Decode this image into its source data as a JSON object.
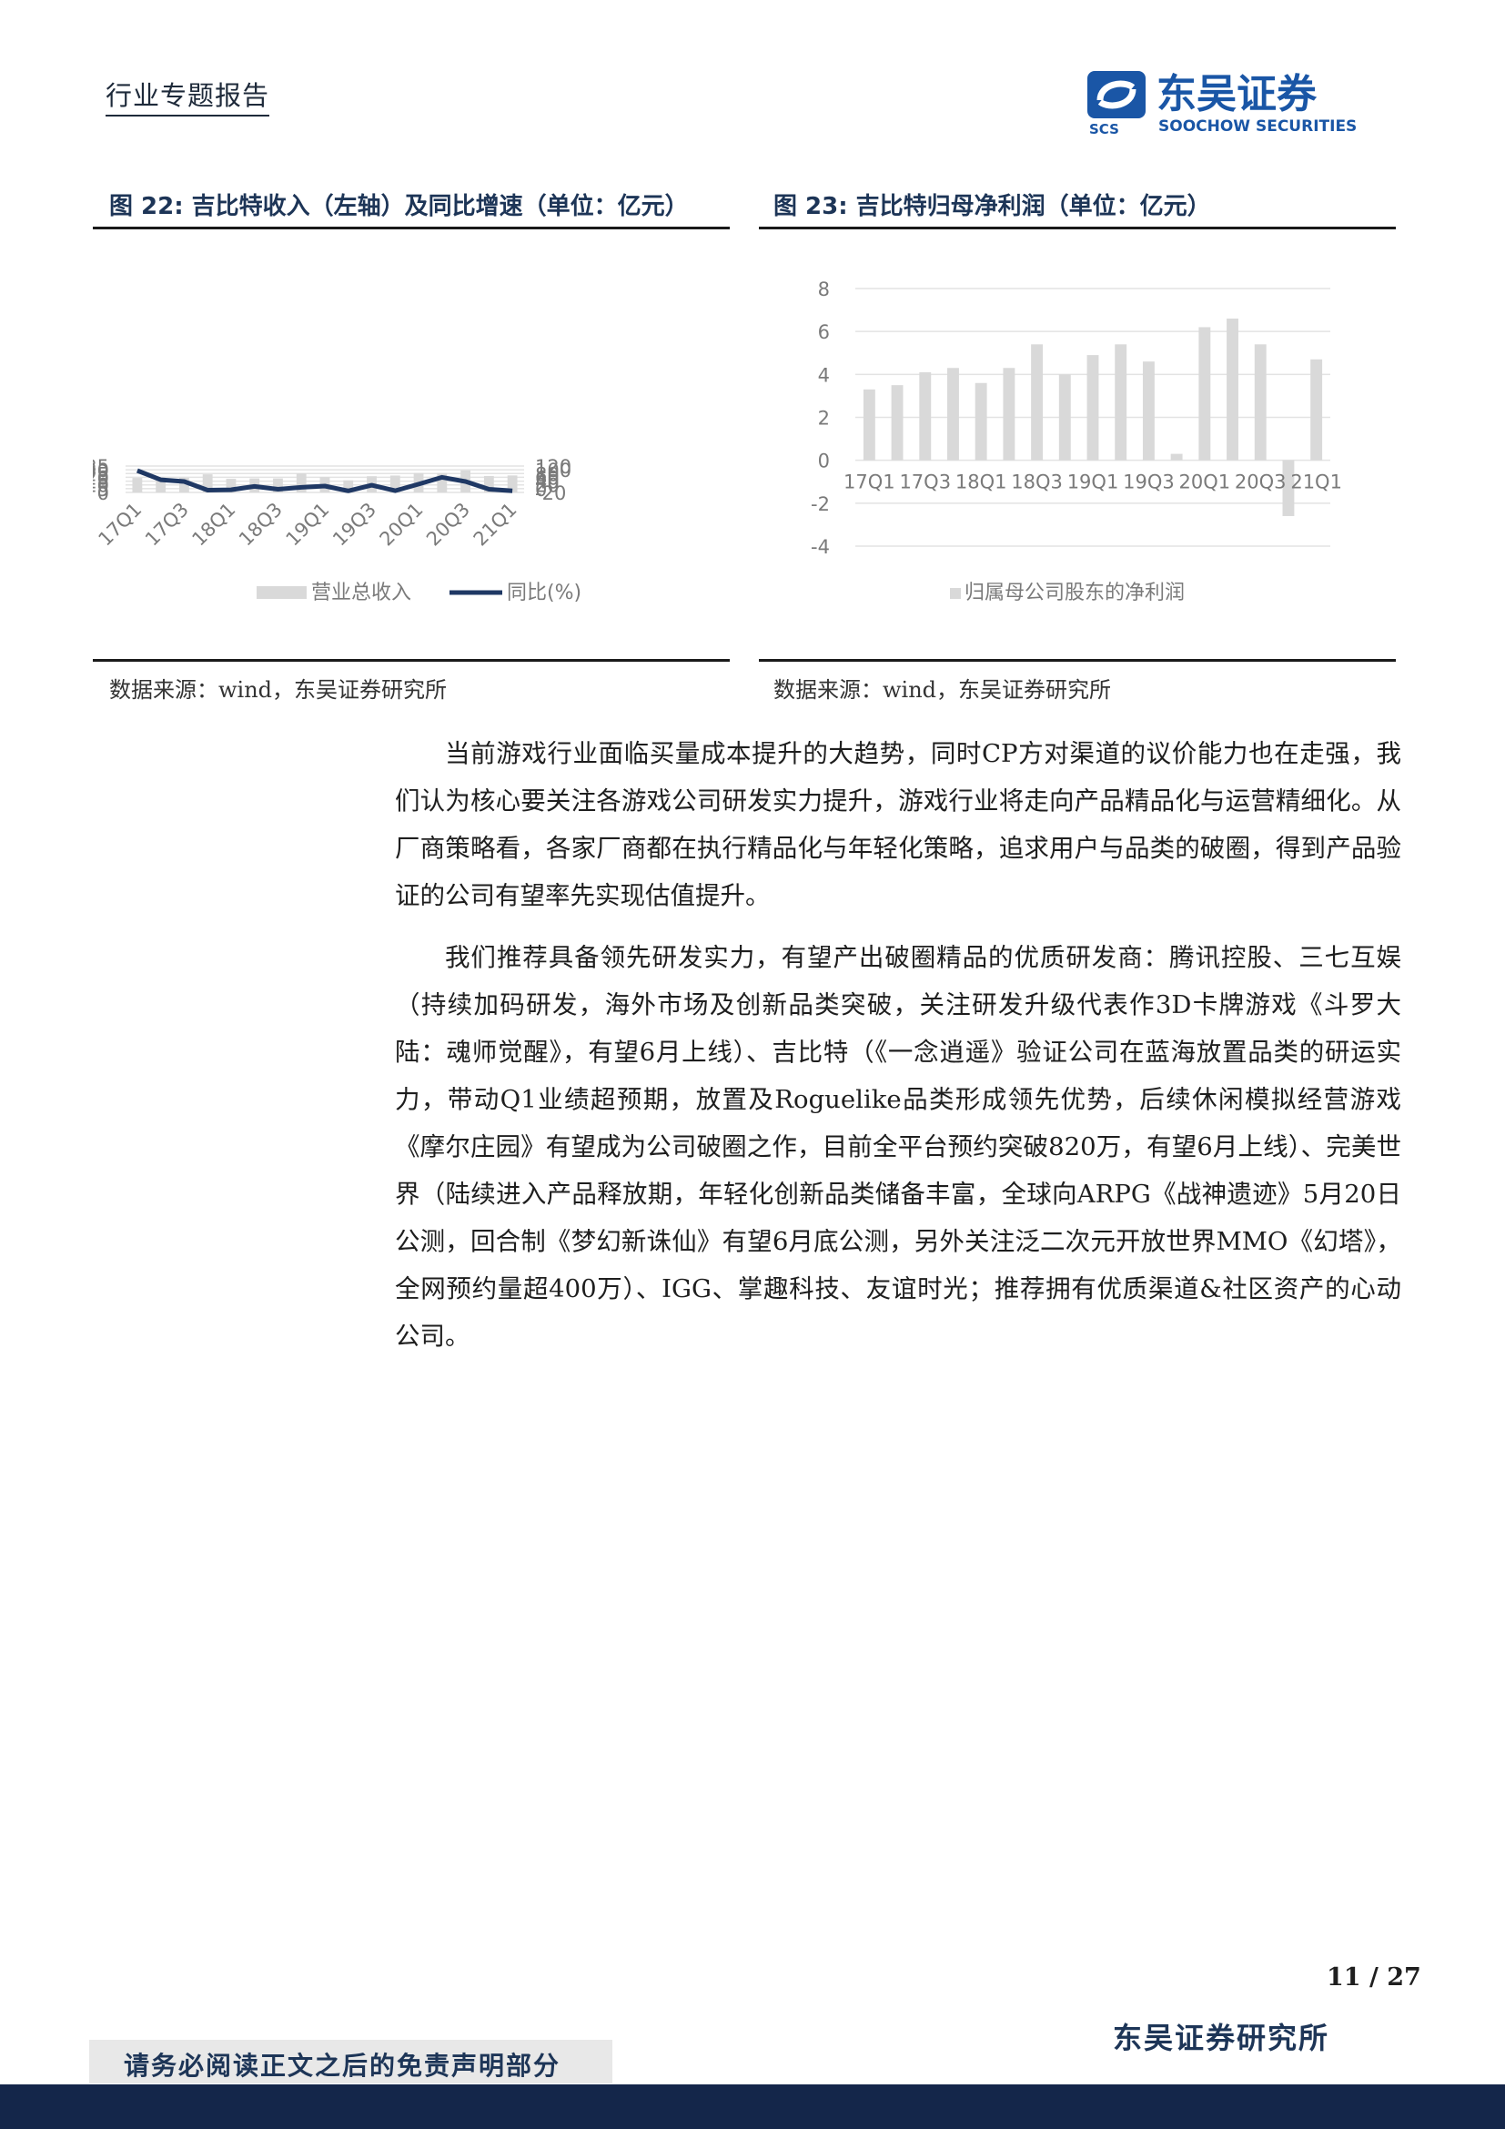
{
  "header": {
    "doc_type": "行业专题报告",
    "logo_cn": "东吴证券",
    "logo_en": "SOOCHOW SECURITIES",
    "logo_abbr": "SCS"
  },
  "colors": {
    "navy": "#1d3557",
    "bar_gray": "#d9d9d9",
    "line_navy": "#1f3864",
    "footer_bar": "#14264a"
  },
  "figure22": {
    "title": "图 22:  吉比特收入（左轴）及同比增速（单位：亿元）",
    "source": "数据来源：wind，东吴证券研究所"
  },
  "figure23": {
    "title": "图 23:  吉比特归母净利润（单位：亿元）",
    "source": "数据来源：wind，东吴证券研究所"
  },
  "chart_data": [
    {
      "type": "bar",
      "combo_line": true,
      "title": "吉比特收入（左轴）及同比增速（单位：亿元）",
      "categories": [
        "17Q1",
        "17Q2",
        "17Q3",
        "17Q4",
        "18Q1",
        "18Q2",
        "18Q3",
        "18Q4",
        "19Q1",
        "19Q2",
        "19Q3",
        "19Q4",
        "20Q1",
        "20Q2",
        "20Q3",
        "20Q4",
        "21Q1"
      ],
      "x_tick_labels": [
        "17Q1",
        "17Q3",
        "18Q1",
        "18Q3",
        "19Q1",
        "19Q3",
        "20Q1",
        "20Q3",
        "21Q1"
      ],
      "series": [
        {
          "name": "营业总收入",
          "kind": "bar",
          "axis": "left",
          "values": [
            19.2,
            20.0,
            19.3,
            24.0,
            18.0,
            18.5,
            18.5,
            25.2,
            20.4,
            16.0,
            21.5,
            22.4,
            25.8,
            25.7,
            29.3,
            21.8,
            22.5
          ]
        },
        {
          "name": "同比(%)",
          "kind": "line",
          "axis": "right",
          "values": [
            96,
            47,
            38,
            -8,
            -6,
            12,
            -3,
            7,
            14,
            -12,
            18,
            -11,
            24,
            60,
            38,
            -3,
            -12
          ]
        }
      ],
      "left_axis": {
        "ylim": [
          0,
          35
        ],
        "ticks": [
          "35",
          "30",
          "25",
          "20",
          "15",
          "10",
          "5",
          "0"
        ]
      },
      "right_axis": {
        "ylim": [
          -20,
          120
        ],
        "ticks": [
          "120",
          "100",
          "80",
          "60",
          "40",
          "20",
          "0",
          "-20"
        ]
      },
      "legend": [
        "营业总收入",
        "同比(%)"
      ]
    },
    {
      "type": "bar",
      "title": "吉比特归母净利润（单位：亿元）",
      "categories": [
        "17Q1",
        "17Q2",
        "17Q3",
        "17Q4",
        "18Q1",
        "18Q2",
        "18Q3",
        "18Q4",
        "19Q1",
        "19Q2",
        "19Q3",
        "19Q4",
        "20Q1",
        "20Q2",
        "20Q3",
        "20Q4",
        "21Q1"
      ],
      "x_tick_labels": [
        "17Q1",
        "17Q3",
        "18Q1",
        "18Q3",
        "19Q1",
        "19Q3",
        "20Q1",
        "20Q3",
        "21Q1"
      ],
      "series": [
        {
          "name": "归属母公司股东的净利润",
          "values": [
            3.3,
            3.5,
            4.1,
            4.3,
            3.6,
            4.3,
            5.4,
            4.0,
            4.9,
            5.4,
            4.6,
            0.3,
            6.2,
            6.6,
            5.4,
            -2.6,
            4.7
          ]
        }
      ],
      "ylim": [
        -4,
        8
      ],
      "y_ticks": [
        "8",
        "6",
        "4",
        "2",
        "0",
        "-2",
        "-4"
      ],
      "legend": [
        "归属母公司股东的净利润"
      ]
    }
  ],
  "body": {
    "para1": "当前游戏行业面临买量成本提升的大趋势，同时CP方对渠道的议价能力也在走强，我们认为核心要关注各游戏公司研发实力提升，游戏行业将走向产品精品化与运营精细化。从厂商策略看，各家厂商都在执行精品化与年轻化策略，追求用户与品类的破圈，得到产品验证的公司有望率先实现估值提升。",
    "para2": "我们推荐具备领先研发实力，有望产出破圈精品的优质研发商：腾讯控股、三七互娱（持续加码研发，海外市场及创新品类突破，关注研发升级代表作3D卡牌游戏《斗罗大陆：魂师觉醒》，有望6月上线）、吉比特（《一念逍遥》验证公司在蓝海放置品类的研运实力，带动Q1业绩超预期，放置及Roguelike品类形成领先优势，后续休闲模拟经营游戏《摩尔庄园》有望成为公司破圈之作，目前全平台预约突破820万，有望6月上线）、完美世界（陆续进入产品释放期，年轻化创新品类储备丰富，全球向ARPG《战神遗迹》5月20日公测，回合制《梦幻新诛仙》有望6月底公测，另外关注泛二次元开放世界MMO《幻塔》，全网预约量超400万）、IGG、掌趣科技、友谊时光；推荐拥有优质渠道&社区资产的心动公司。"
  },
  "footer": {
    "page": "11 / 27",
    "institute": "东吴证券研究所",
    "disclaimer": "请务必阅读正文之后的免责声明部分"
  }
}
